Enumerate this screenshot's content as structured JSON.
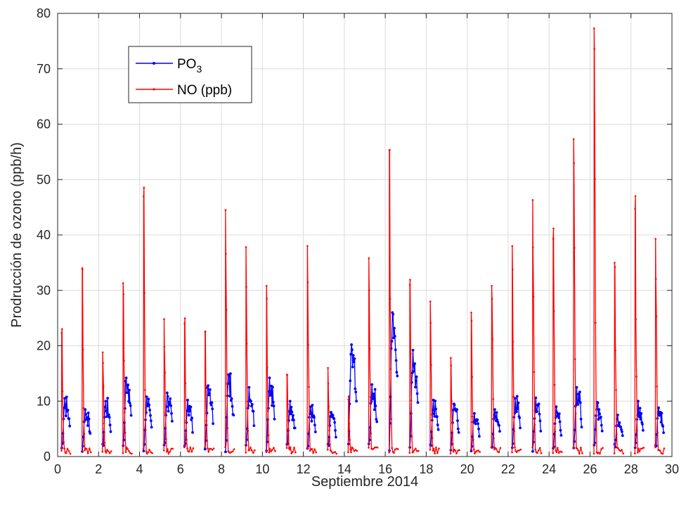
{
  "chart_data": {
    "type": "line",
    "title": "",
    "xlabel": "Septiembre 2014",
    "ylabel": "Prodrucción de ozono (ppb/h)",
    "xlim": [
      0,
      30
    ],
    "ylim": [
      0,
      80
    ],
    "xticks": [
      0,
      2,
      4,
      6,
      8,
      10,
      12,
      14,
      16,
      18,
      20,
      22,
      24,
      26,
      28,
      30
    ],
    "yticks": [
      0,
      10,
      20,
      30,
      40,
      50,
      60,
      70,
      80
    ],
    "grid": true,
    "legend_position": "top-left",
    "legend": [
      {
        "label": "PO",
        "subscript": "3",
        "color": "#0000ff",
        "marker": "dot"
      },
      {
        "label": "NO (ppb)",
        "color": "#ff0000",
        "marker": "dot"
      }
    ],
    "series": [
      {
        "name": "PO3",
        "color": "#0000ff",
        "segments": [
          {
            "day": 0,
            "peak": 10.5
          },
          {
            "day": 1,
            "peak": 8.5
          },
          {
            "day": 2,
            "peak": 10.0
          },
          {
            "day": 3,
            "peak": 14.2
          },
          {
            "day": 4,
            "peak": 10.8
          },
          {
            "day": 5,
            "peak": 11.5
          },
          {
            "day": 6,
            "peak": 10.2
          },
          {
            "day": 7,
            "peak": 12.8
          },
          {
            "day": 8,
            "peak": 14.8
          },
          {
            "day": 9,
            "peak": 12.5
          },
          {
            "day": 10,
            "peak": 14.2
          },
          {
            "day": 11,
            "peak": 10.0
          },
          {
            "day": 12,
            "peak": 9.0
          },
          {
            "day": 13,
            "peak": 8.0
          },
          {
            "day": 14,
            "peak": 20.2
          },
          {
            "day": 15,
            "peak": 13.0
          },
          {
            "day": 16,
            "peak": 26.0
          },
          {
            "day": 17,
            "peak": 19.2
          },
          {
            "day": 18,
            "peak": 10.2
          },
          {
            "day": 19,
            "peak": 9.5
          },
          {
            "day": 20,
            "peak": 7.8
          },
          {
            "day": 21,
            "peak": 8.5
          },
          {
            "day": 22,
            "peak": 10.5
          },
          {
            "day": 23,
            "peak": 10.6
          },
          {
            "day": 24,
            "peak": 9.0
          },
          {
            "day": 25,
            "peak": 12.5
          },
          {
            "day": 26,
            "peak": 9.8
          },
          {
            "day": 27,
            "peak": 7.5
          },
          {
            "day": 28,
            "peak": 10.0
          },
          {
            "day": 29,
            "peak": 8.8
          }
        ]
      },
      {
        "name": "NO (ppb)",
        "color": "#ff0000",
        "segments": [
          {
            "day": 0,
            "peak": 22.3
          },
          {
            "day": 1,
            "peak": 34.0
          },
          {
            "day": 2,
            "peak": 18.8
          },
          {
            "day": 3,
            "peak": 31.3
          },
          {
            "day": 4,
            "peak": 47.0
          },
          {
            "day": 5,
            "peak": 24.8
          },
          {
            "day": 6,
            "peak": 24.0
          },
          {
            "day": 7,
            "peak": 22.5
          },
          {
            "day": 8,
            "peak": 44.5
          },
          {
            "day": 9,
            "peak": 37.8
          },
          {
            "day": 10,
            "peak": 30.8
          },
          {
            "day": 11,
            "peak": 14.8
          },
          {
            "day": 12,
            "peak": 38.0
          },
          {
            "day": 13,
            "peak": 16.0
          },
          {
            "day": 14,
            "peak": 10.3
          },
          {
            "day": 15,
            "peak": 35.8
          },
          {
            "day": 16,
            "peak": 55.3
          },
          {
            "day": 17,
            "peak": 31.0
          },
          {
            "day": 18,
            "peak": 28.0
          },
          {
            "day": 19,
            "peak": 17.8
          },
          {
            "day": 20,
            "peak": 26.0
          },
          {
            "day": 21,
            "peak": 30.8
          },
          {
            "day": 22,
            "peak": 38.0
          },
          {
            "day": 23,
            "peak": 46.3
          },
          {
            "day": 24,
            "peak": 39.3
          },
          {
            "day": 25,
            "peak": 57.3
          },
          {
            "day": 26,
            "peak": 77.3
          },
          {
            "day": 27,
            "peak": 35.0
          },
          {
            "day": 28,
            "peak": 44.7
          },
          {
            "day": 29,
            "peak": 39.3
          }
        ]
      }
    ]
  }
}
